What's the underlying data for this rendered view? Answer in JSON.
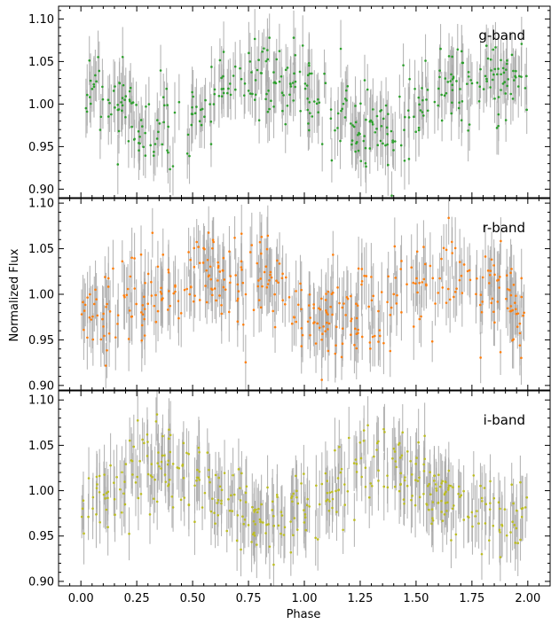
{
  "chart_data": {
    "type": "scatter",
    "title": "",
    "xlabel": "Phase",
    "ylabel": "Normalized Flux",
    "xlim": [
      -0.1,
      2.1
    ],
    "x_ticks": [
      "0.00",
      "0.25",
      "0.50",
      "0.75",
      "1.00",
      "1.25",
      "1.50",
      "1.75",
      "2.00"
    ],
    "shared_x": true,
    "grid": false,
    "errorbar_color": "#a9a9a9",
    "points_per_panel": 400,
    "panels": [
      {
        "label": "g-band",
        "color": "#2ca02c",
        "ylim": [
          0.89,
          1.115
        ],
        "y_ticks": [
          "0.90",
          "0.95",
          "1.00",
          "1.05",
          "1.10"
        ],
        "x": [
          0.0,
          0.1,
          0.2,
          0.3,
          0.4,
          0.5,
          0.6,
          0.7,
          0.8,
          0.9,
          1.0,
          1.1,
          1.2,
          1.3,
          1.4,
          1.5,
          1.6,
          1.7,
          1.8,
          1.9,
          2.0
        ],
        "trend": [
          1.02,
          1.01,
          0.985,
          0.97,
          0.965,
          0.985,
          1.005,
          1.02,
          1.03,
          1.03,
          1.015,
          1.0,
          0.98,
          0.965,
          0.965,
          0.99,
          1.01,
          1.02,
          1.03,
          1.03,
          1.02
        ],
        "scatter_sd": 0.025,
        "error": 0.03
      },
      {
        "label": "r-band",
        "color": "#ff7f0e",
        "ylim": [
          0.895,
          1.105
        ],
        "y_ticks": [
          "0.90",
          "0.95",
          "1.00",
          "1.05",
          "1.10"
        ],
        "x": [
          0.0,
          0.1,
          0.2,
          0.3,
          0.4,
          0.5,
          0.6,
          0.7,
          0.8,
          0.9,
          1.0,
          1.1,
          1.2,
          1.3,
          1.4,
          1.5,
          1.6,
          1.7,
          1.8,
          1.9,
          2.0
        ],
        "trend": [
          0.98,
          0.975,
          0.98,
          0.99,
          1.0,
          1.015,
          1.025,
          1.025,
          1.02,
          1.0,
          0.98,
          0.975,
          0.98,
          0.99,
          1.0,
          1.015,
          1.025,
          1.025,
          1.02,
          1.0,
          0.98
        ],
        "scatter_sd": 0.025,
        "error": 0.03
      },
      {
        "label": "i-band",
        "color": "#bcbd22",
        "ylim": [
          0.895,
          1.11
        ],
        "y_ticks": [
          "0.90",
          "0.95",
          "1.00",
          "1.05",
          "1.10"
        ],
        "x": [
          0.0,
          0.1,
          0.2,
          0.3,
          0.4,
          0.5,
          0.6,
          0.7,
          0.8,
          0.9,
          1.0,
          1.1,
          1.2,
          1.3,
          1.4,
          1.5,
          1.6,
          1.7,
          1.8,
          1.9,
          2.0
        ],
        "trend": [
          0.985,
          1.0,
          1.015,
          1.03,
          1.03,
          1.01,
          0.995,
          0.985,
          0.975,
          0.97,
          0.985,
          1.0,
          1.015,
          1.03,
          1.03,
          1.01,
          0.995,
          0.985,
          0.975,
          0.97,
          0.975
        ],
        "scatter_sd": 0.022,
        "error": 0.03
      }
    ]
  }
}
